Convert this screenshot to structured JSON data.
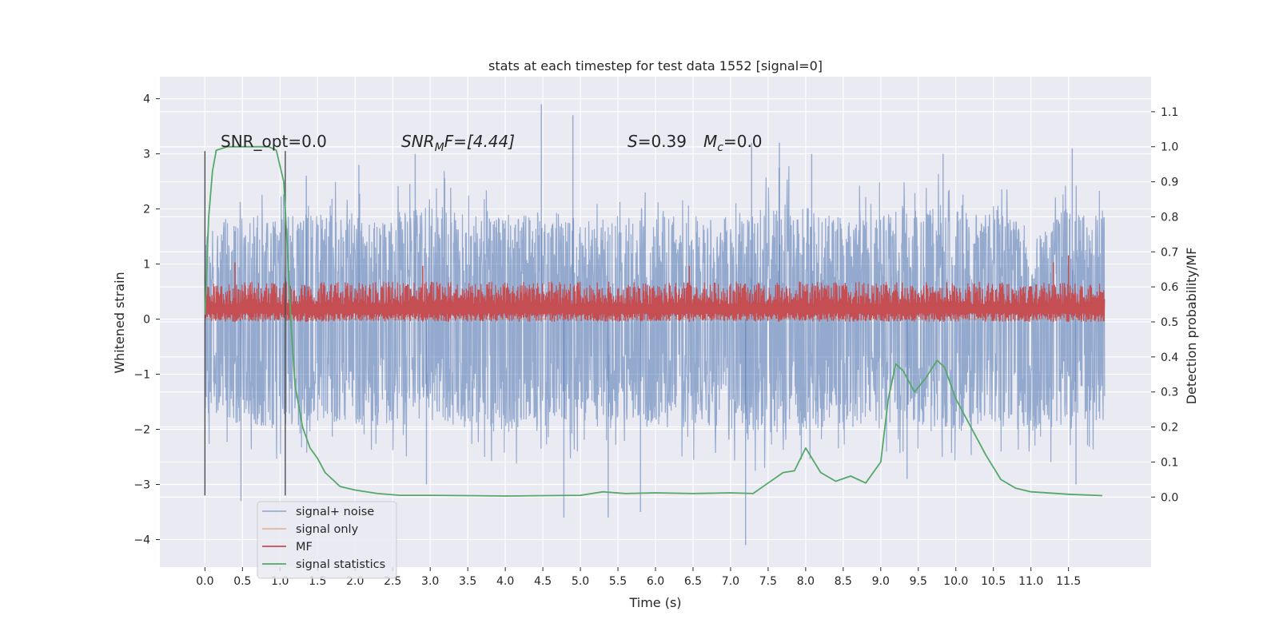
{
  "chart_data": {
    "type": "line",
    "title": "stats at each timestep for test data 1552 [signal=0]",
    "xlabel": "Time (s)",
    "ylabel": "Whitened strain",
    "y2label": "Detection probability/MF",
    "xlim": [
      -0.6,
      12.6
    ],
    "ylim": [
      -4.5,
      4.4
    ],
    "y2lim": [
      -0.2,
      1.2
    ],
    "x_ticks": [
      0.0,
      0.5,
      1.0,
      1.5,
      2.0,
      2.5,
      3.0,
      3.5,
      4.0,
      4.5,
      5.0,
      5.5,
      6.0,
      6.5,
      7.0,
      7.5,
      8.0,
      8.5,
      9.0,
      9.5,
      10.0,
      10.5,
      11.0,
      11.5
    ],
    "y_ticks": [
      -4,
      -3,
      -2,
      -1,
      0,
      1,
      2,
      3,
      4
    ],
    "y2_ticks": [
      0.0,
      0.1,
      0.2,
      0.3,
      0.4,
      0.5,
      0.6,
      0.7,
      0.8,
      0.9,
      1.0,
      1.1
    ],
    "grid": true,
    "legend_position": "lower-left",
    "annotations": {
      "snr_opt": "SNR_opt=0.0",
      "snr_mf_base": "SNR",
      "snr_mf_sub": "M",
      "snr_mf_rest": "F=[4.44]",
      "s_sym": "S",
      "s_val": "=0.39",
      "mc_sym": "M",
      "mc_sub": "c",
      "mc_val": "=0.0"
    },
    "vlines": [
      {
        "x": 0.0,
        "ymin": -3.2,
        "ymax": 3.05
      },
      {
        "x": 1.07,
        "ymin": -3.2,
        "ymax": 3.05
      }
    ],
    "series": [
      {
        "name": "signal+ noise",
        "color": "#4c72b0",
        "axis": "left",
        "x_range": [
          0.0,
          11.98
        ],
        "envelope_upper": [
          2.2,
          2.4,
          2.3,
          2.5,
          2.2,
          2.4,
          2.6,
          2.3,
          2.5,
          2.4,
          2.2,
          2.6,
          2.4,
          2.3,
          2.5,
          2.7,
          2.4,
          2.3,
          2.6,
          2.5,
          2.4,
          2.2,
          2.5,
          2.4
        ],
        "envelope_lower": [
          -2.2,
          -2.4,
          -2.6,
          -2.3,
          -2.4,
          -2.5,
          -2.3,
          -2.4,
          -2.6,
          -2.5,
          -2.4,
          -2.3,
          -2.5,
          -2.4,
          -2.7,
          -2.5,
          -2.6,
          -2.4,
          -2.3,
          -2.5,
          -2.4,
          -2.6,
          -2.4,
          -2.3
        ],
        "spikes": [
          [
            0.48,
            -3.3
          ],
          [
            1.35,
            2.6
          ],
          [
            2.05,
            2.8
          ],
          [
            2.8,
            3.0
          ],
          [
            2.95,
            -3.0
          ],
          [
            4.48,
            3.9
          ],
          [
            4.78,
            -3.6
          ],
          [
            4.9,
            3.7
          ],
          [
            5.37,
            -3.6
          ],
          [
            5.8,
            -3.5
          ],
          [
            7.2,
            -4.1
          ],
          [
            7.28,
            3.2
          ],
          [
            7.65,
            3.2
          ],
          [
            8.08,
            3.0
          ],
          [
            9.35,
            -2.9
          ],
          [
            9.83,
            3.0
          ],
          [
            11.55,
            3.1
          ],
          [
            11.6,
            -3.0
          ]
        ]
      },
      {
        "name": "signal only",
        "color": "#dd8452",
        "axis": "left",
        "x": [
          0.0,
          11.98
        ],
        "y": [
          0.0,
          0.0
        ]
      },
      {
        "name": "MF",
        "color": "#c44e52",
        "axis": "right",
        "x_range": [
          0.0,
          11.98
        ],
        "band_lower": 0.5,
        "band_upper_typical": 0.615,
        "peaks": [
          [
            0.4,
            0.67
          ],
          [
            2.9,
            0.66
          ],
          [
            6.45,
            0.66
          ],
          [
            11.3,
            0.67
          ],
          [
            11.5,
            0.69
          ]
        ]
      },
      {
        "name": "signal statistics",
        "color": "#55a868",
        "axis": "right",
        "x": [
          0.0,
          0.05,
          0.1,
          0.15,
          0.3,
          0.5,
          0.7,
          0.85,
          0.95,
          1.05,
          1.1,
          1.15,
          1.2,
          1.3,
          1.4,
          1.5,
          1.6,
          1.8,
          2.0,
          2.3,
          2.6,
          3.0,
          3.5,
          4.0,
          4.5,
          5.0,
          5.3,
          5.6,
          6.0,
          6.5,
          7.0,
          7.3,
          7.5,
          7.7,
          7.85,
          8.0,
          8.2,
          8.4,
          8.6,
          8.8,
          9.0,
          9.1,
          9.2,
          9.3,
          9.45,
          9.6,
          9.75,
          9.85,
          10.0,
          10.2,
          10.4,
          10.6,
          10.8,
          11.0,
          11.5,
          11.95
        ],
        "y": [
          0.52,
          0.8,
          0.93,
          0.99,
          1.0,
          1.0,
          1.0,
          1.0,
          0.99,
          0.9,
          0.7,
          0.48,
          0.32,
          0.2,
          0.14,
          0.11,
          0.07,
          0.03,
          0.02,
          0.01,
          0.005,
          0.005,
          0.004,
          0.003,
          0.004,
          0.005,
          0.015,
          0.01,
          0.012,
          0.01,
          0.012,
          0.01,
          0.04,
          0.07,
          0.075,
          0.14,
          0.07,
          0.045,
          0.06,
          0.04,
          0.1,
          0.28,
          0.38,
          0.36,
          0.3,
          0.34,
          0.39,
          0.37,
          0.28,
          0.2,
          0.12,
          0.05,
          0.025,
          0.015,
          0.008,
          0.004
        ]
      }
    ]
  }
}
